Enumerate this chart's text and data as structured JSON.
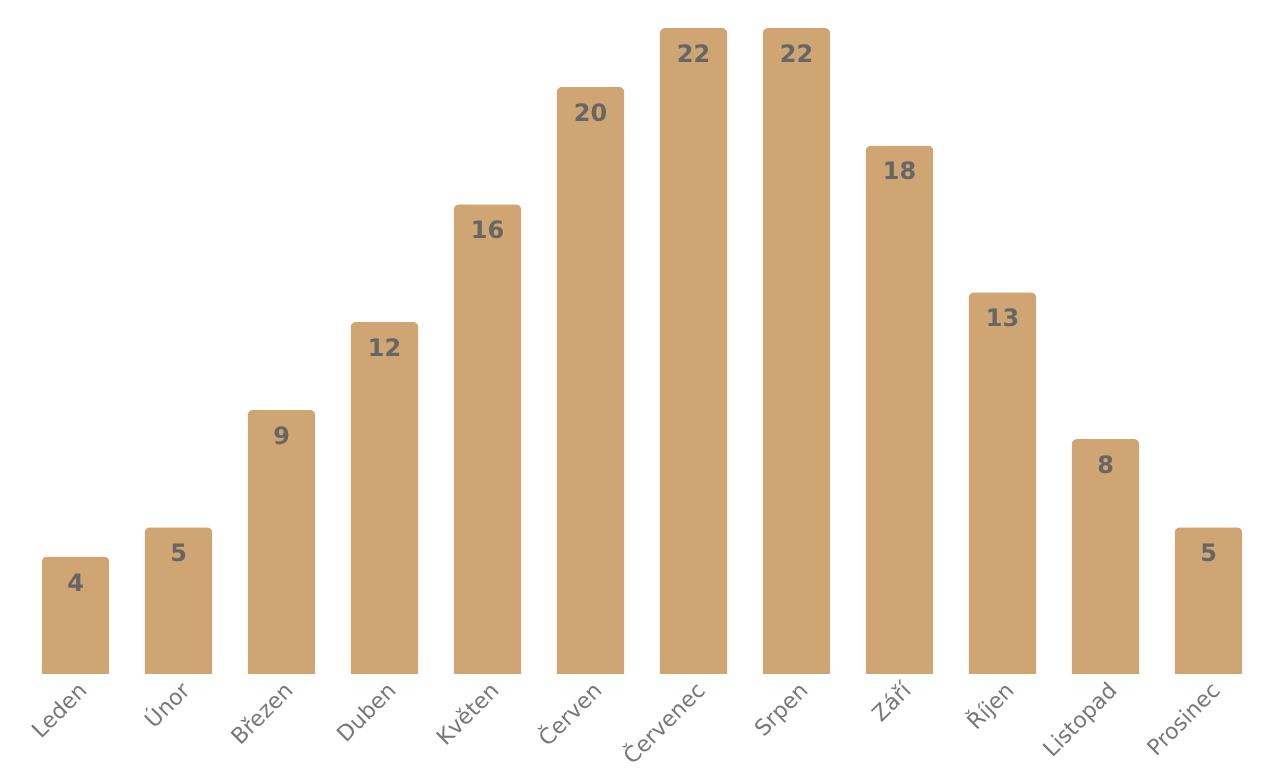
{
  "chart_data": {
    "type": "bar",
    "categories": [
      "Leden",
      "Únor",
      "Březen",
      "Duben",
      "Květen",
      "Červen",
      "Červenec",
      "Srpen",
      "Září",
      "Říjen",
      "Listopad",
      "Prosinec"
    ],
    "values": [
      4,
      5,
      9,
      12,
      16,
      20,
      22,
      22,
      18,
      13,
      8,
      5
    ],
    "color": "#cfa574",
    "data_labels": true,
    "grid": false
  }
}
